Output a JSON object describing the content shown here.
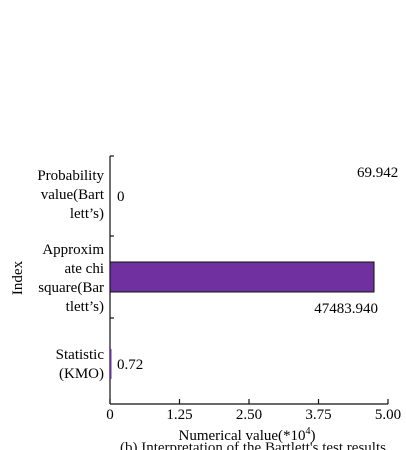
{
  "chart_data": {
    "type": "bar",
    "orientation": "horizontal",
    "categories": [
      "Probability value(Bartlett’s)",
      "Approximate chi square(Bartlett’s)",
      "Statistic (KMO)"
    ],
    "category_lines": [
      [
        "Probability",
        "value(Bart",
        "lett’s)"
      ],
      [
        "Approxim",
        "ate chi",
        "square(Bar",
        "tlett’s)"
      ],
      [
        "Statistic",
        "(KMO)"
      ]
    ],
    "values": [
      0,
      47483.94,
      0.72
    ],
    "data_labels": [
      "0",
      "47483.940",
      "0.72"
    ],
    "extra_annotation": "69.942",
    "bar_color": "#7030a0",
    "xlabel": "Numerical value(*10",
    "xlabel_superscript": "4",
    "xlabel_suffix": ")",
    "ylabel": "Index",
    "xticks": [
      "0",
      "1.25",
      "2.50",
      "3.75",
      "5.00"
    ],
    "xlim": [
      0,
      50000
    ],
    "grid": false
  },
  "caption_partial": "(b) Interpretation of the Bartlett's test results"
}
